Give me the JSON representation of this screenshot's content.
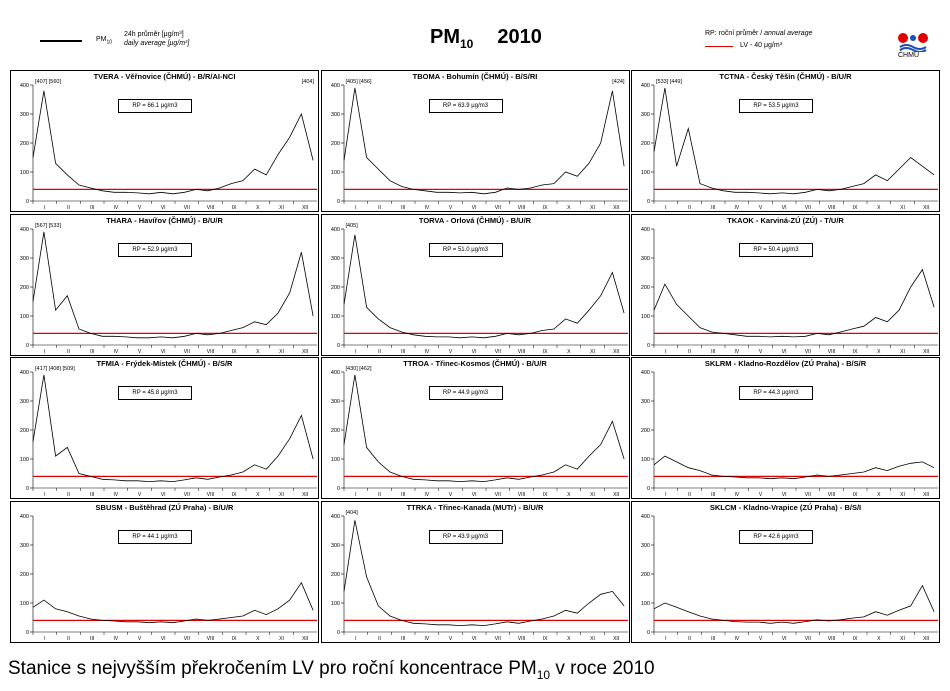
{
  "header": {
    "legend_pm": "PM",
    "legend_pm_sub": "10",
    "legend_cz": "24h průměr [μg/m³]",
    "legend_en": "daily average [μg/m³]",
    "title_pm": "PM",
    "title_sub": "10",
    "title_year": "2010",
    "rp_label_cz": "RP: roční průměr /",
    "rp_label_en": "annual average",
    "lv_label": "LV - 40 μg/m³",
    "logo_text": "ČHMÚ"
  },
  "colors": {
    "series": "#000000",
    "limit": "#e00000"
  },
  "axis": {
    "y_ticks": [
      "0",
      "100",
      "200",
      "300",
      "400"
    ],
    "ylim": [
      0,
      400
    ],
    "month_ticks": [
      "I",
      "II",
      "III",
      "IV",
      "V",
      "VI",
      "VII",
      "VIII",
      "IX",
      "X",
      "XI",
      "XII"
    ],
    "limit_value": 40
  },
  "chart_data": [
    {
      "type": "line",
      "title": "TVERA - Věřnovice (ČHMÚ) - B/R/AI-NCI",
      "rp": "RP = 66.1 μg/m3",
      "peaks_left": "[407] [560]",
      "peaks_right": "[404]",
      "annual_avg": 66.1,
      "ylim": [
        0,
        400
      ],
      "limit": 40,
      "x": [
        1,
        15,
        30,
        45,
        60,
        75,
        90,
        105,
        120,
        135,
        150,
        165,
        180,
        195,
        210,
        225,
        240,
        255,
        270,
        285,
        300,
        315,
        330,
        345,
        360
      ],
      "y": [
        150,
        380,
        130,
        90,
        55,
        45,
        35,
        30,
        30,
        28,
        25,
        30,
        25,
        30,
        40,
        35,
        45,
        60,
        70,
        110,
        90,
        160,
        220,
        300,
        140
      ]
    },
    {
      "type": "line",
      "title": "TBOMA - Bohumín (ČHMÚ) - B/S/RI",
      "rp": "RP = 63.9 μg/m3",
      "peaks_left": "[405] [456]",
      "peaks_right": "[424]",
      "annual_avg": 63.9,
      "ylim": [
        0,
        400
      ],
      "limit": 40,
      "x": [
        1,
        15,
        30,
        45,
        60,
        75,
        90,
        105,
        120,
        135,
        150,
        165,
        180,
        195,
        210,
        225,
        240,
        255,
        270,
        285,
        300,
        315,
        330,
        345,
        360
      ],
      "y": [
        140,
        390,
        150,
        110,
        70,
        50,
        40,
        35,
        30,
        30,
        28,
        30,
        25,
        30,
        45,
        40,
        45,
        55,
        60,
        100,
        85,
        130,
        200,
        380,
        120
      ]
    },
    {
      "type": "line",
      "title": "TCTNA - Český Těšín (ČHMÚ) - B/U/R",
      "rp": "RP = 53.5 μg/m3",
      "peaks_left": "[533] [449]",
      "peaks_right": "",
      "annual_avg": 53.5,
      "ylim": [
        0,
        400
      ],
      "limit": 40,
      "x": [
        1,
        15,
        30,
        45,
        60,
        75,
        90,
        105,
        120,
        135,
        150,
        165,
        180,
        195,
        210,
        225,
        240,
        255,
        270,
        285,
        300,
        315,
        330,
        345,
        360
      ],
      "y": [
        170,
        390,
        120,
        250,
        60,
        45,
        35,
        30,
        30,
        28,
        25,
        28,
        25,
        30,
        40,
        35,
        40,
        50,
        60,
        90,
        70,
        110,
        150,
        120,
        90
      ]
    },
    {
      "type": "line",
      "title": "THARA - Havířov (ČHMÚ) - B/U/R",
      "rp": "RP = 52.9 μg/m3",
      "peaks_left": "[567] [533]",
      "peaks_right": "",
      "annual_avg": 52.9,
      "ylim": [
        0,
        400
      ],
      "limit": 40,
      "x": [
        1,
        15,
        30,
        45,
        60,
        75,
        90,
        105,
        120,
        135,
        150,
        165,
        180,
        195,
        210,
        225,
        240,
        255,
        270,
        285,
        300,
        315,
        330,
        345,
        360
      ],
      "y": [
        150,
        390,
        120,
        170,
        55,
        40,
        30,
        30,
        28,
        25,
        25,
        28,
        25,
        30,
        40,
        35,
        40,
        50,
        60,
        80,
        70,
        110,
        180,
        320,
        100
      ]
    },
    {
      "type": "line",
      "title": "TORVA - Orlová (ČHMÚ) - B/U/R",
      "rp": "RP = 51.0 μg/m3",
      "peaks_left": "[405]",
      "peaks_right": "",
      "annual_avg": 51.0,
      "ylim": [
        0,
        400
      ],
      "limit": 40,
      "x": [
        1,
        15,
        30,
        45,
        60,
        75,
        90,
        105,
        120,
        135,
        150,
        165,
        180,
        195,
        210,
        225,
        240,
        255,
        270,
        285,
        300,
        315,
        330,
        345,
        360
      ],
      "y": [
        140,
        380,
        130,
        90,
        60,
        45,
        35,
        30,
        28,
        28,
        25,
        28,
        25,
        30,
        40,
        35,
        40,
        50,
        55,
        90,
        75,
        120,
        170,
        250,
        110
      ]
    },
    {
      "type": "line",
      "title": "TKAOK - Karviná-ZÚ (ZÚ) - T/U/R",
      "rp": "RP = 50.4 μg/m3",
      "peaks_left": "",
      "peaks_right": "",
      "annual_avg": 50.4,
      "ylim": [
        0,
        400
      ],
      "limit": 40,
      "x": [
        1,
        15,
        30,
        45,
        60,
        75,
        90,
        105,
        120,
        135,
        150,
        165,
        180,
        195,
        210,
        225,
        240,
        255,
        270,
        285,
        300,
        315,
        330,
        345,
        360
      ],
      "y": [
        120,
        210,
        140,
        100,
        60,
        45,
        40,
        35,
        30,
        30,
        28,
        30,
        28,
        30,
        40,
        35,
        45,
        55,
        65,
        95,
        80,
        120,
        200,
        260,
        130
      ]
    },
    {
      "type": "line",
      "title": "TFMIA - Frýdek-Místek (ČHMÚ) - B/S/R",
      "rp": "RP = 45.8 μg/m3",
      "peaks_left": "[417] [408] [509]",
      "peaks_right": "",
      "annual_avg": 45.8,
      "ylim": [
        0,
        400
      ],
      "limit": 40,
      "x": [
        1,
        15,
        30,
        45,
        60,
        75,
        90,
        105,
        120,
        135,
        150,
        165,
        180,
        195,
        210,
        225,
        240,
        255,
        270,
        285,
        300,
        315,
        330,
        345,
        360
      ],
      "y": [
        160,
        390,
        110,
        140,
        50,
        40,
        30,
        28,
        25,
        25,
        22,
        25,
        22,
        28,
        35,
        30,
        38,
        45,
        55,
        80,
        65,
        110,
        170,
        250,
        100
      ]
    },
    {
      "type": "line",
      "title": "TTROA - Třinec-Kosmos (ČHMÚ) - B/U/R",
      "rp": "RP = 44.9 μg/m3",
      "peaks_left": "[430] [462]",
      "peaks_right": "",
      "annual_avg": 44.9,
      "ylim": [
        0,
        400
      ],
      "limit": 40,
      "x": [
        1,
        15,
        30,
        45,
        60,
        75,
        90,
        105,
        120,
        135,
        150,
        165,
        180,
        195,
        210,
        225,
        240,
        255,
        270,
        285,
        300,
        315,
        330,
        345,
        360
      ],
      "y": [
        150,
        390,
        140,
        90,
        55,
        40,
        30,
        28,
        25,
        25,
        22,
        25,
        22,
        28,
        35,
        30,
        38,
        45,
        55,
        80,
        65,
        110,
        150,
        230,
        100
      ]
    },
    {
      "type": "line",
      "title": "SKLRM - Kladno-Rozdělov (ZÚ Praha) - B/S/R",
      "rp": "RP = 44.3 μg/m3",
      "peaks_left": "",
      "peaks_right": "",
      "annual_avg": 44.3,
      "ylim": [
        0,
        400
      ],
      "limit": 40,
      "x": [
        1,
        15,
        30,
        45,
        60,
        75,
        90,
        105,
        120,
        135,
        150,
        165,
        180,
        195,
        210,
        225,
        240,
        255,
        270,
        285,
        300,
        315,
        330,
        345,
        360
      ],
      "y": [
        80,
        110,
        90,
        70,
        60,
        45,
        40,
        38,
        35,
        35,
        32,
        35,
        32,
        38,
        45,
        40,
        45,
        50,
        55,
        70,
        60,
        75,
        85,
        90,
        70
      ]
    },
    {
      "type": "line",
      "title": "SBUSM - Buštěhrad (ZÚ Praha) - B/U/R",
      "rp": "RP = 44.1 μg/m3",
      "peaks_left": "",
      "peaks_right": "",
      "annual_avg": 44.1,
      "ylim": [
        0,
        400
      ],
      "limit": 40,
      "x": [
        1,
        15,
        30,
        45,
        60,
        75,
        90,
        105,
        120,
        135,
        150,
        165,
        180,
        195,
        210,
        225,
        240,
        255,
        270,
        285,
        300,
        315,
        330,
        345,
        360
      ],
      "y": [
        85,
        110,
        80,
        70,
        55,
        45,
        40,
        38,
        35,
        35,
        32,
        35,
        32,
        38,
        45,
        40,
        45,
        50,
        55,
        75,
        60,
        80,
        110,
        170,
        75
      ]
    },
    {
      "type": "line",
      "title": "TTRKA - Třinec-Kanada (MUTr) - B/U/R",
      "rp": "RP = 43.9 μg/m3",
      "peaks_left": "[404]",
      "peaks_right": "",
      "annual_avg": 43.9,
      "ylim": [
        0,
        400
      ],
      "limit": 40,
      "x": [
        1,
        15,
        30,
        45,
        60,
        75,
        90,
        105,
        120,
        135,
        150,
        165,
        180,
        195,
        210,
        225,
        240,
        255,
        270,
        285,
        300,
        315,
        330,
        345,
        360
      ],
      "y": [
        140,
        385,
        190,
        90,
        55,
        40,
        30,
        28,
        25,
        25,
        22,
        25,
        22,
        28,
        35,
        30,
        38,
        45,
        55,
        75,
        65,
        100,
        130,
        140,
        90
      ]
    },
    {
      "type": "line",
      "title": "SKLCM - Kladno-Vrapice (ZÚ Praha) - B/S/I",
      "rp": "RP = 42.6 μg/m3",
      "peaks_left": "",
      "peaks_right": "",
      "annual_avg": 42.6,
      "ylim": [
        0,
        400
      ],
      "limit": 40,
      "x": [
        1,
        15,
        30,
        45,
        60,
        75,
        90,
        105,
        120,
        135,
        150,
        165,
        180,
        195,
        210,
        225,
        240,
        255,
        270,
        285,
        300,
        315,
        330,
        345,
        360
      ],
      "y": [
        80,
        100,
        85,
        70,
        55,
        45,
        40,
        36,
        34,
        34,
        30,
        34,
        30,
        36,
        42,
        38,
        42,
        48,
        52,
        70,
        58,
        75,
        90,
        160,
        70
      ]
    }
  ],
  "caption": {
    "text": "Stanice s nejvyšším překročením LV pro roční koncentrace PM",
    "sub": "10",
    "tail": " v roce 2010"
  }
}
